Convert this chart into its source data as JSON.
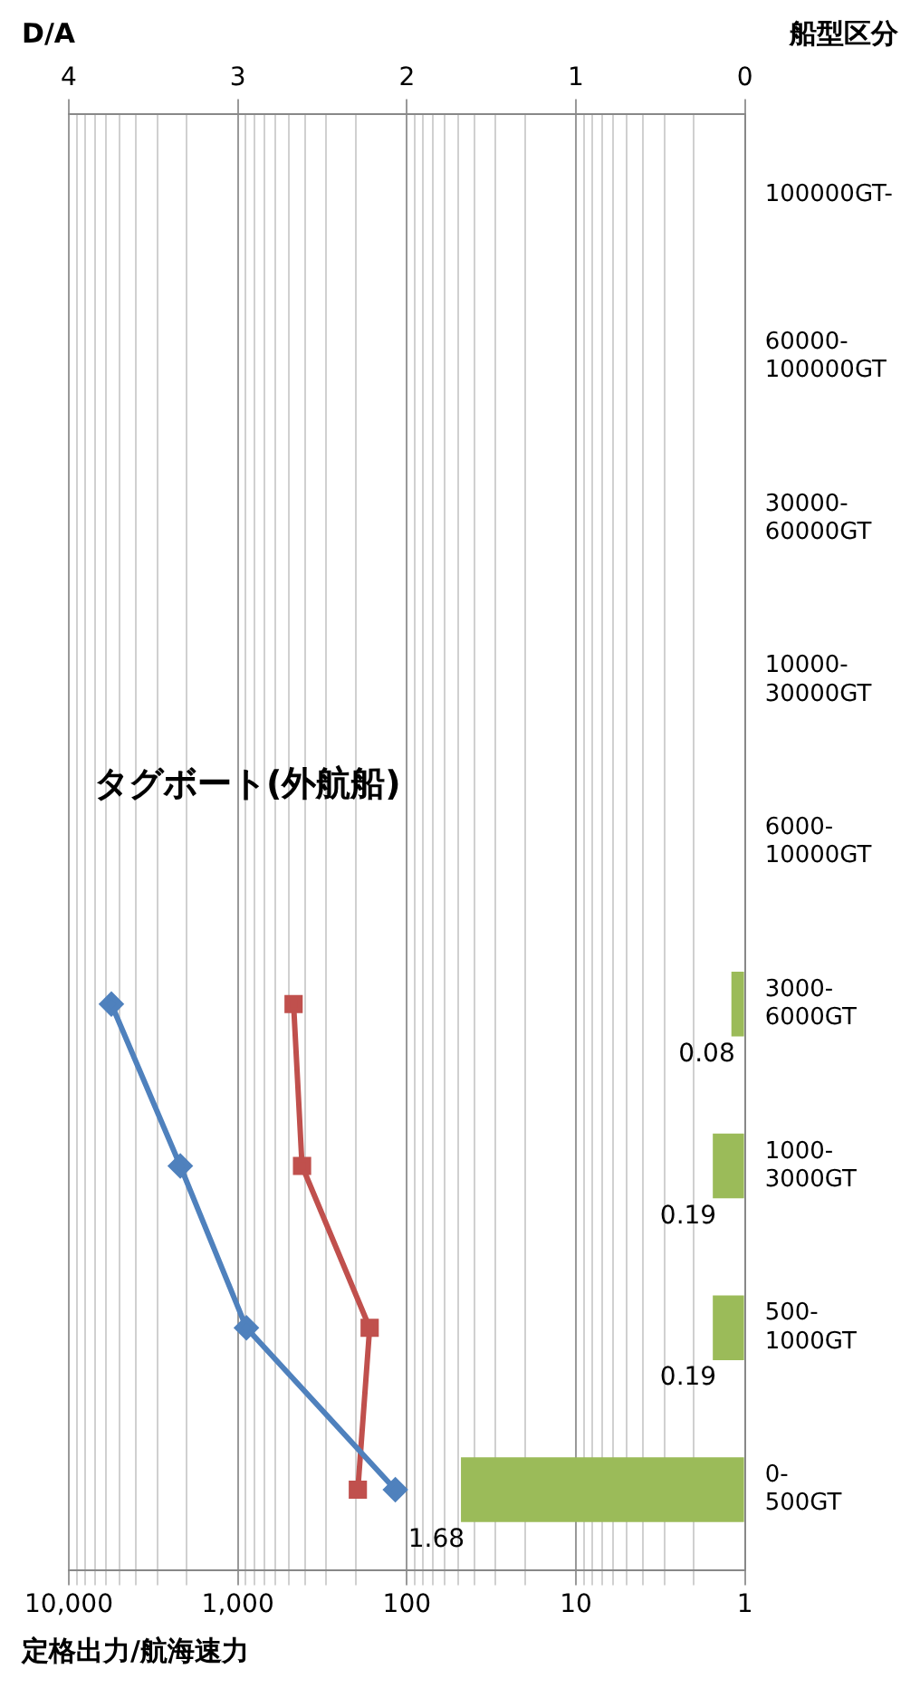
{
  "chart_data": {
    "type": "bar",
    "orientation": "horizontal",
    "xlabel": "定格出力/航海速力",
    "x2label": "D/A",
    "ylabel": "船型区分",
    "annotations": [
      "タグボート(外航船)"
    ],
    "categories": [
      "100000GT-",
      "60000-100000GT",
      "30000-60000GT",
      "10000-30000GT",
      "6000-10000GT",
      "3000-6000GT",
      "1000-3000GT",
      "500-1000GT",
      "0-500GT"
    ],
    "log": "x",
    "xlim": [
      10000,
      1
    ],
    "xticks": [
      1,
      {
        "value": 2,
        "label": null
      },
      {
        "value": 3,
        "label": null
      },
      {
        "value": 4,
        "label": null
      },
      {
        "value": 5,
        "label": null
      },
      {
        "value": 6,
        "label": null
      },
      {
        "value": 7,
        "label": null
      },
      {
        "value": 8,
        "label": null
      },
      {
        "value": 9,
        "label": null
      },
      10,
      {
        "value": 20,
        "label": null
      },
      {
        "value": 30,
        "label": null
      },
      {
        "value": 40,
        "label": null
      },
      {
        "value": 50,
        "label": null
      },
      {
        "value": 60,
        "label": null
      },
      {
        "value": 70,
        "label": null
      },
      {
        "value": 80,
        "label": null
      },
      {
        "value": 90,
        "label": null
      },
      100,
      {
        "value": 200,
        "label": null
      },
      {
        "value": 300,
        "label": null
      },
      {
        "value": 400,
        "label": null
      },
      {
        "value": 500,
        "label": null
      },
      {
        "value": 600,
        "label": null
      },
      {
        "value": 700,
        "label": null
      },
      {
        "value": 800,
        "label": null
      },
      {
        "value": 900,
        "label": null
      },
      {
        "value": 1000,
        "label": "1,000"
      },
      {
        "value": 2000,
        "label": null
      },
      {
        "value": 3000,
        "label": null
      },
      {
        "value": 4000,
        "label": null
      },
      {
        "value": 5000,
        "label": null
      },
      {
        "value": 6000,
        "label": null
      },
      {
        "value": 7000,
        "label": null
      },
      {
        "value": 8000,
        "label": null
      },
      {
        "value": 9000,
        "label": null
      },
      {
        "value": 10000,
        "label": "10,000"
      }
    ],
    "x2lim": [
      4,
      0
    ],
    "x2ticks": [
      0,
      1,
      2,
      3,
      4
    ],
    "grid": "x",
    "series": [
      {
        "axis": "x2",
        "color": "#9bbb59",
        "data_labels": true,
        "values": [
          null,
          null,
          null,
          null,
          null,
          0.08,
          0.19,
          0.19,
          1.68
        ]
      },
      {
        "type": "line",
        "color": "#4f81bd",
        "marker": "diamond",
        "values": [
          null,
          null,
          null,
          null,
          null,
          5600,
          2190,
          890,
          117
        ]
      },
      {
        "type": "line",
        "color": "#c0504d",
        "marker": "square",
        "values": [
          null,
          null,
          null,
          null,
          null,
          468,
          417,
          166,
          195
        ]
      }
    ]
  }
}
